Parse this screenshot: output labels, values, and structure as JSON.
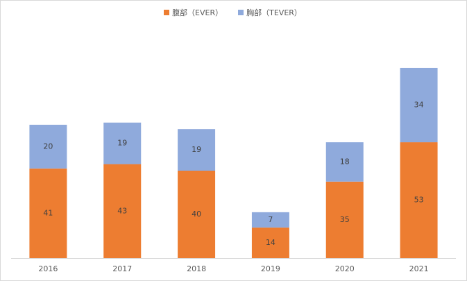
{
  "chart_data": {
    "type": "bar",
    "stacked": true,
    "categories": [
      "2016",
      "2017",
      "2018",
      "2019",
      "2020",
      "2021"
    ],
    "series": [
      {
        "name": "腹部（EVER）",
        "values": [
          41,
          43,
          40,
          14,
          35,
          53
        ],
        "color": "#ED7D31"
      },
      {
        "name": "胸部（TEVER）",
        "values": [
          20,
          19,
          19,
          7,
          18,
          34
        ],
        "color": "#8FAADC"
      }
    ],
    "legend": {
      "position": "top"
    },
    "ylim": [
      0,
      90
    ],
    "grid": false,
    "y_axis_visible": false,
    "data_labels": true,
    "baseline_color": "#d9d9d9"
  }
}
